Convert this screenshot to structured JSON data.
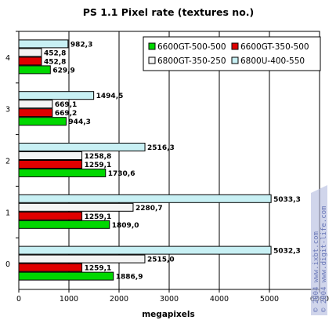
{
  "chart_data": {
    "type": "bar",
    "orientation": "horizontal",
    "title": "PS 1.1 Pixel rate (textures no.)",
    "xlabel": "megapixels",
    "ylabel": "",
    "xlim": [
      0,
      6000
    ],
    "x_ticks": [
      "0",
      "1000",
      "2000",
      "3000",
      "4000",
      "5000",
      "6000"
    ],
    "categories": [
      "0",
      "1",
      "2",
      "3",
      "4"
    ],
    "grid": "vertical",
    "legend_position": "top-right",
    "series": [
      {
        "name": "6800U-400-550",
        "color": "#c8f0f4",
        "values": [
          5032.3,
          5033.3,
          2516.3,
          1494.5,
          982.3
        ],
        "labels": [
          "5032,3",
          "5033,3",
          "2516,3",
          "1494,5",
          "982,3"
        ]
      },
      {
        "name": "6800GT-350-250",
        "color": "#f4f4f4",
        "values": [
          2515.0,
          2280.7,
          1258.8,
          669.1,
          452.8
        ],
        "labels": [
          "2515,0",
          "2280,7",
          "1258,8",
          "669,1",
          "452,8"
        ]
      },
      {
        "name": "6600GT-350-500",
        "color": "#e00000",
        "values": [
          1259.1,
          1259.1,
          1259.1,
          669.2,
          452.8
        ],
        "labels": [
          "1259,1",
          "1259,1",
          "1259,1",
          "669,2",
          "452,8"
        ]
      },
      {
        "name": "6600GT-500-500",
        "color": "#00d800",
        "values": [
          1886.9,
          1809.0,
          1730.6,
          944.3,
          629.9
        ],
        "labels": [
          "1886,9",
          "1809,0",
          "1730,6",
          "944,3",
          "629,9"
        ]
      }
    ]
  },
  "legend_order": [
    3,
    2,
    1,
    0
  ],
  "watermark": {
    "line1": "© 2004 www.ixbt.com",
    "line2": "© 2004 www.digit-life.com"
  }
}
